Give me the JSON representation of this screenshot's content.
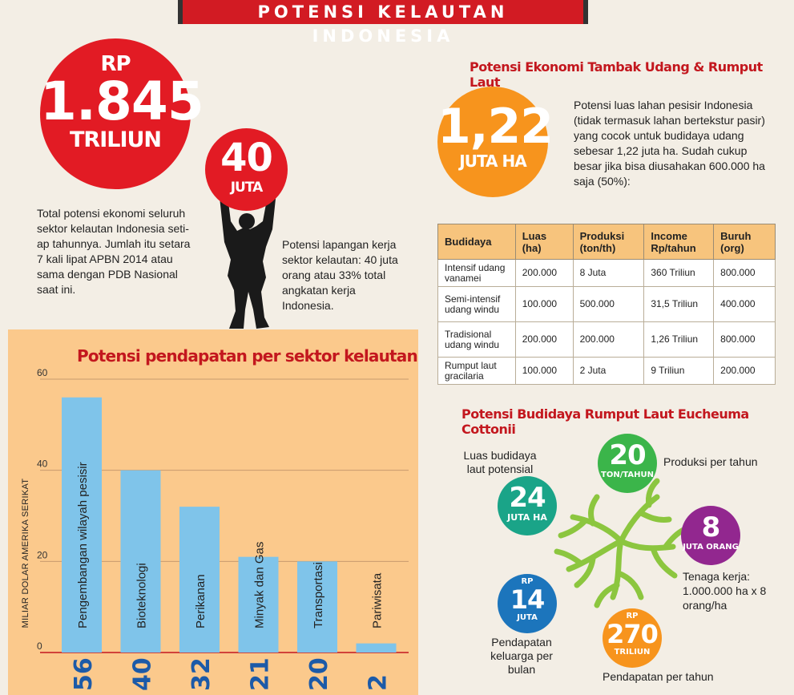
{
  "header": {
    "title": "POTENSI KELAUTAN INDONESIA"
  },
  "big_circle": {
    "prefix": "RP",
    "value": "1.845",
    "unit": "TRILIUN"
  },
  "big_text": "Total potensi ekonomi seluruh sektor kelautan Indonesia seti-ap tahunnya. Jumlah itu setara 7 kali lipat APBN 2014 atau sama dengan PDB Nasional saat ini.",
  "jobs_circle": {
    "value": "40",
    "unit": "JUTA"
  },
  "jobs_text": "Potensi lapangan kerja sektor kelautan: 40 juta orang atau 33% total angkatan kerja Indonesia.",
  "shrimp": {
    "heading": "Potensi Ekonomi Tambak Udang & Rumput Laut",
    "circle_value": "1,22",
    "circle_unit": "JUTA HA",
    "text": "Potensi luas lahan pesisir Indonesia (tidak termasuk lahan bertekstur pasir) yang cocok untuk budidaya udang sebesar 1,22 juta ha. Sudah cukup besar jika bisa diusahakan 600.000 ha saja (50%):"
  },
  "table": {
    "headers": [
      "Budidaya",
      "Luas (ha)",
      "Produksi (ton/th)",
      "Income Rp/tahun",
      "Buruh (org)"
    ],
    "rows": [
      [
        "Intensif udang vanamei",
        "200.000",
        "8 Juta",
        "360 Triliun",
        "800.000"
      ],
      [
        "Semi-intensif udang windu",
        "100.000",
        "500.000",
        "31,5 Triliun",
        "400.000"
      ],
      [
        "Tradisional udang windu",
        "200.000",
        "200.000",
        "1,26 Triliun",
        "800.000"
      ],
      [
        "Rumput laut gracilaria",
        "100.000",
        "2 Juta",
        "9 Triliun",
        "200.000"
      ]
    ]
  },
  "seaweed": {
    "heading": "Potensi Budidaya Rumput Laut Eucheuma Cottonii",
    "area": {
      "label": "Luas budidaya laut potensial",
      "value": "24",
      "unit": "JUTA HA",
      "color": "#1aa488"
    },
    "production": {
      "label": "Produksi per tahun",
      "value": "20",
      "unit": "TON/TAHUN",
      "color": "#3bb54a"
    },
    "workers": {
      "label": "Tenaga kerja: 1.000.000 ha x 8 orang/ha",
      "value": "8",
      "unit": "JUTA ORANG",
      "color": "#92278f"
    },
    "family_income": {
      "label": "Pendapatan keluarga per bulan",
      "prefix": "RP",
      "value": "14",
      "unit": "JUTA",
      "color": "#1c75bc"
    },
    "annual_income": {
      "label": "Pendapatan per tahun",
      "prefix": "RP",
      "value": "270",
      "unit": "TRILIUN",
      "color": "#f7941d"
    }
  },
  "chart_data": {
    "type": "bar",
    "title": "Potensi pendapatan per sektor kelautan",
    "ylabel": "MILIAR DOLAR AMERIKA SERIKAT",
    "ylim": [
      0,
      60
    ],
    "yticks": [
      0,
      20,
      40,
      60
    ],
    "grid": true,
    "bar_color": "#7fc4ea",
    "categories": [
      "Pengembangan wilayah pesisir",
      "Bioteknologi",
      "Perikanan",
      "Minyak dan Gas",
      "Transportasi",
      "Pariwisata"
    ],
    "values": [
      56,
      40,
      32,
      21,
      20,
      2
    ],
    "value_labels": [
      "56",
      "40",
      "32",
      "21",
      "20",
      "2"
    ]
  }
}
